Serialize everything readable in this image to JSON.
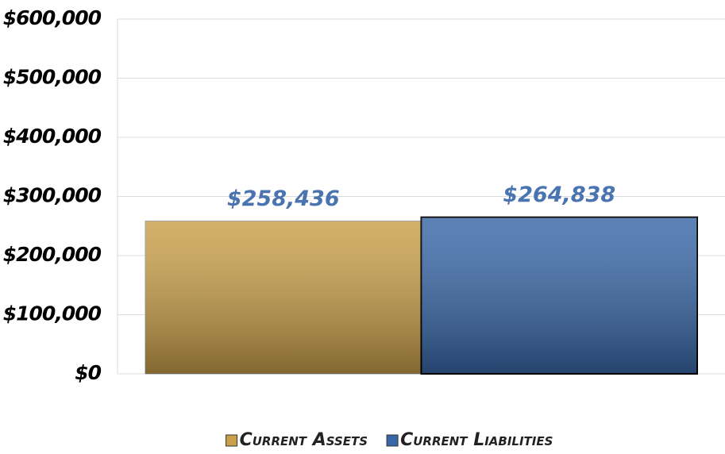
{
  "chart_data": {
    "type": "bar",
    "categories": [
      null
    ],
    "series": [
      {
        "name": "Current Assets",
        "color": "#c9a049",
        "values": [
          258436
        ],
        "value_labels": [
          "$258,436"
        ]
      },
      {
        "name": "Current Liabilities",
        "color": "#3867a8",
        "values": [
          264838
        ],
        "value_labels": [
          "$264,838"
        ]
      }
    ],
    "ylim": [
      0,
      600000
    ],
    "yticks": [
      {
        "value": 0,
        "label": "$0"
      },
      {
        "value": 100000,
        "label": "$100,000"
      },
      {
        "value": 200000,
        "label": "$200,000"
      },
      {
        "value": 300000,
        "label": "$300,000"
      },
      {
        "value": 400000,
        "label": "$400,000"
      },
      {
        "value": 500000,
        "label": "$500,000"
      },
      {
        "value": 600000,
        "label": "$600,000"
      }
    ],
    "grid": true,
    "legend": "bottom"
  }
}
